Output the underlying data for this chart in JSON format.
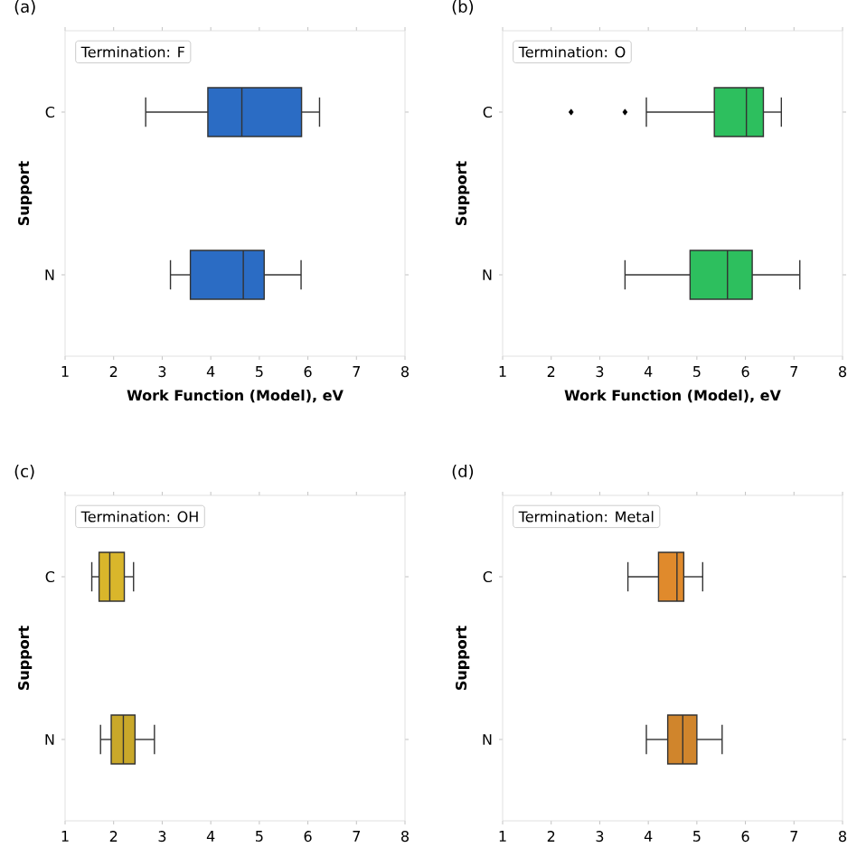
{
  "chart_data": [
    {
      "type": "box",
      "orientation": "horizontal",
      "categories": [
        "C",
        "N"
      ],
      "colors": [
        "#2b6cc4",
        "#2b6cc4"
      ],
      "boxes": [
        {
          "low": 2.66,
          "q1": 3.94,
          "median": 4.64,
          "q3": 5.87,
          "high": 6.24
        },
        {
          "low": 3.17,
          "q1": 3.58,
          "median": 4.67,
          "q3": 5.1,
          "high": 5.86
        }
      ],
      "xlim": [
        1,
        8
      ],
      "xticks": [
        1,
        2,
        3,
        4,
        5,
        6,
        7,
        8
      ],
      "xlabel": "Work Function (Model), eV",
      "ylabel": "Support",
      "legend_title": "Termination: F",
      "annotations": [
        "(a)"
      ]
    },
    {
      "type": "box",
      "orientation": "horizontal",
      "categories": [
        "C",
        "N"
      ],
      "colors": [
        "#2dbf5e",
        "#2dbf5e"
      ],
      "boxes": [
        {
          "low": 3.96,
          "q1": 5.36,
          "median": 6.02,
          "q3": 6.37,
          "high": 6.74,
          "outliers": [
            2.41,
            3.52
          ]
        },
        {
          "low": 3.52,
          "q1": 4.86,
          "median": 5.63,
          "q3": 6.14,
          "high": 7.12
        }
      ],
      "xlim": [
        1,
        8
      ],
      "xticks": [
        1,
        2,
        3,
        4,
        5,
        6,
        7,
        8
      ],
      "xlabel": "Work Function (Model), eV",
      "ylabel": "Support",
      "legend_title": "Termination: O",
      "annotations": [
        "(b)"
      ]
    },
    {
      "type": "box",
      "orientation": "horizontal",
      "categories": [
        "C",
        "N"
      ],
      "colors": [
        "#d9b62b",
        "#c9a82a"
      ],
      "boxes": [
        {
          "low": 1.55,
          "q1": 1.7,
          "median": 1.92,
          "q3": 2.22,
          "high": 2.41
        },
        {
          "low": 1.73,
          "q1": 1.95,
          "median": 2.2,
          "q3": 2.44,
          "high": 2.84
        }
      ],
      "xlim": [
        1,
        8
      ],
      "xticks": [
        1,
        2,
        3,
        4,
        5,
        6,
        7,
        8
      ],
      "ylabel": "Support",
      "legend_title": "Termination: OH",
      "annotations": [
        "(c)"
      ]
    },
    {
      "type": "box",
      "orientation": "horizontal",
      "categories": [
        "C",
        "N"
      ],
      "colors": [
        "#e08a2c",
        "#d0852c"
      ],
      "boxes": [
        {
          "low": 3.58,
          "q1": 4.21,
          "median": 4.59,
          "q3": 4.73,
          "high": 5.12
        },
        {
          "low": 3.96,
          "q1": 4.4,
          "median": 4.71,
          "q3": 5.0,
          "high": 5.52
        }
      ],
      "xlim": [
        1,
        8
      ],
      "xticks": [
        1,
        2,
        3,
        4,
        5,
        6,
        7,
        8
      ],
      "ylabel": "Support",
      "legend_title": "Termination: Metal",
      "annotations": [
        "(d)"
      ]
    }
  ]
}
